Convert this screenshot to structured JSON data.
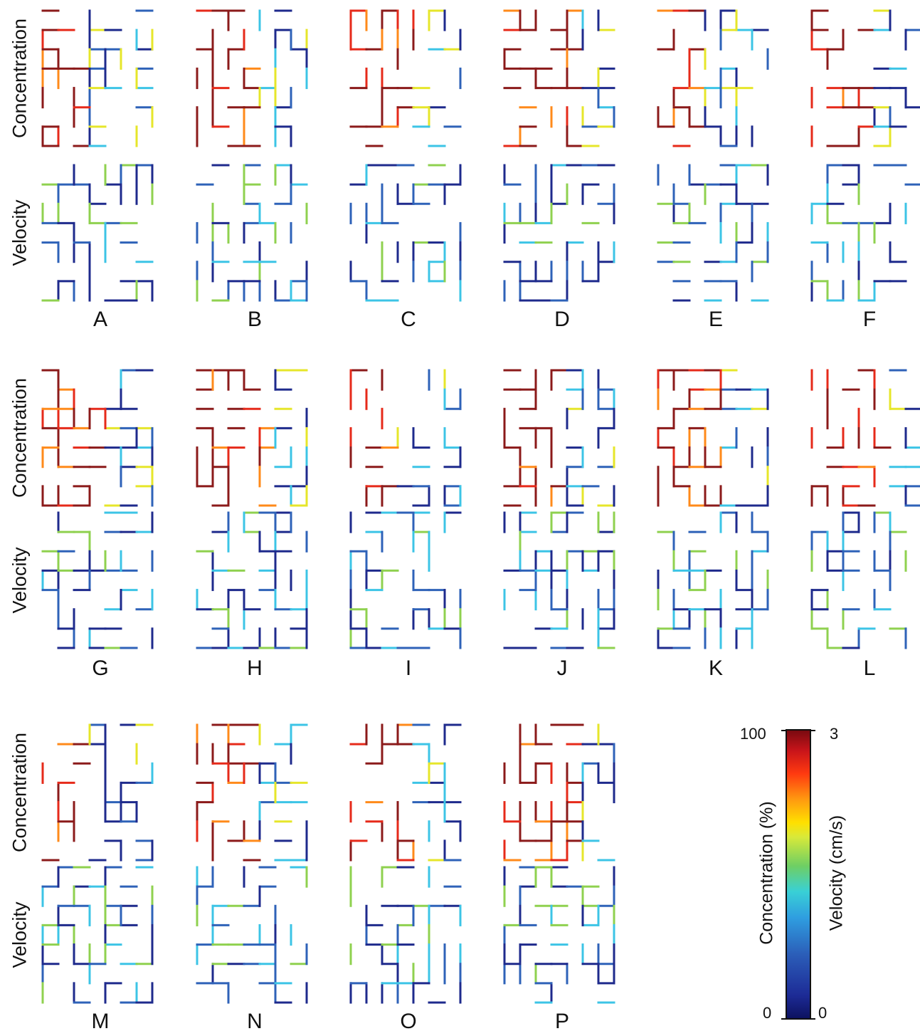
{
  "panels": [
    "A",
    "B",
    "C",
    "D",
    "E",
    "F",
    "G",
    "H",
    "I",
    "J",
    "K",
    "L",
    "M",
    "N",
    "O",
    "P"
  ],
  "row_labels": {
    "concentration": "Concentration",
    "velocity": "Velocity"
  },
  "colorbar": {
    "left_max": "100",
    "left_min": "0",
    "right_max": "3",
    "right_min": "0",
    "left_title": "Concentration (%)",
    "right_title": "Velocity (cm/s)"
  },
  "colors": {
    "dark_red": "#8b1a1a",
    "red": "#e62a1a",
    "orange": "#ff8a1a",
    "yellow": "#e6e62a",
    "green": "#8fd14f",
    "cyan": "#3cc4e6",
    "blue": "#2e62b8",
    "navy": "#1e2a8c"
  }
}
